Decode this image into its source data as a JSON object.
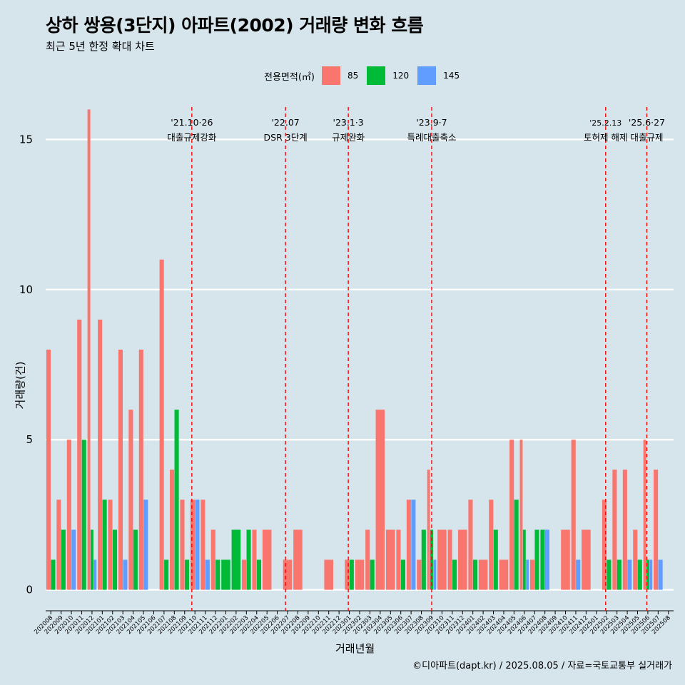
{
  "chart_data": {
    "type": "bar",
    "title": "상하 쌍용(3단지) 아파트(2002) 거래량 변화 흐름",
    "subtitle": "최근 5년 한정 확대 차트",
    "xlabel": "거래년월",
    "ylabel": "거래량(건)",
    "caption": "©디아파트(dapt.kr) / 2025.08.05 / 자료=국토교통부 실거래가",
    "legend_title": "전용면적(㎡)",
    "legend_position": "top",
    "ylim": [
      -0.7,
      16.2
    ],
    "yticks": [
      0,
      5,
      10,
      15
    ],
    "grid": true,
    "categories": [
      "202008",
      "202009",
      "202010",
      "202011",
      "202012",
      "202101",
      "202102",
      "202103",
      "202104",
      "202105",
      "202106",
      "202107",
      "202108",
      "202109",
      "202110",
      "202111",
      "202112",
      "202201",
      "202202",
      "202203",
      "202204",
      "202205",
      "202206",
      "202207",
      "202208",
      "202209",
      "202210",
      "202211",
      "202212",
      "202301",
      "202302",
      "202303",
      "202304",
      "202305",
      "202306",
      "202307",
      "202308",
      "202309",
      "202310",
      "202311",
      "202312",
      "202401",
      "202402",
      "202403",
      "202404",
      "202405",
      "202406",
      "202407",
      "202408",
      "202409",
      "202410",
      "202411",
      "202412",
      "202501",
      "202502",
      "202503",
      "202504",
      "202505",
      "202506",
      "202507",
      "202508"
    ],
    "series": [
      {
        "name": "85",
        "color": "#f8766d",
        "values": [
          8,
          3,
          5,
          9,
          16,
          9,
          3,
          8,
          6,
          8,
          0,
          11,
          4,
          3,
          3,
          3,
          2,
          0,
          0,
          1,
          2,
          2,
          0,
          1,
          2,
          0,
          0,
          1,
          0,
          1,
          1,
          2,
          6,
          2,
          2,
          3,
          1,
          4,
          2,
          2,
          2,
          3,
          1,
          3,
          1,
          5,
          5,
          1,
          0,
          0,
          2,
          5,
          2,
          0,
          3,
          4,
          4,
          2,
          5,
          4,
          0
        ]
      },
      {
        "name": "120",
        "color": "#00ba38",
        "values": [
          1,
          2,
          0,
          5,
          2,
          3,
          2,
          0,
          2,
          0,
          0,
          1,
          6,
          1,
          0,
          0,
          1,
          1,
          2,
          2,
          1,
          0,
          0,
          0,
          0,
          0,
          0,
          0,
          0,
          1,
          0,
          1,
          0,
          0,
          1,
          0,
          2,
          2,
          0,
          1,
          0,
          1,
          0,
          2,
          0,
          3,
          2,
          2,
          2,
          0,
          0,
          0,
          0,
          0,
          1,
          1,
          0,
          1,
          1,
          0,
          0
        ]
      },
      {
        "name": "145",
        "color": "#619cff",
        "values": [
          0,
          0,
          2,
          0,
          1,
          0,
          0,
          1,
          0,
          3,
          0,
          0,
          0,
          0,
          3,
          1,
          0,
          0,
          0,
          0,
          0,
          0,
          0,
          0,
          0,
          0,
          0,
          0,
          0,
          0,
          0,
          0,
          0,
          0,
          0,
          3,
          0,
          1,
          0,
          0,
          0,
          0,
          0,
          0,
          0,
          0,
          1,
          0,
          2,
          0,
          0,
          1,
          0,
          0,
          0,
          0,
          1,
          0,
          1,
          1,
          0
        ]
      }
    ],
    "annotations": [
      {
        "x": 14.2,
        "line1": "'21.10·26",
        "line2": "대출규제강화"
      },
      {
        "x": 23.3,
        "line1": "'22.07",
        "line2": "DSR 3단계"
      },
      {
        "x": 29.4,
        "line1": "'23.1·3",
        "line2": "규제완화"
      },
      {
        "x": 37.5,
        "line1": "'23.9·7",
        "line2": "특례대출축소"
      },
      {
        "x": 54.4,
        "line1": "'25.2.13",
        "line2": "토허제 해제"
      },
      {
        "x": 58.4,
        "line1": "'25.6·27",
        "line2": "대출규제"
      }
    ],
    "annotation_color": "#ff0000"
  }
}
